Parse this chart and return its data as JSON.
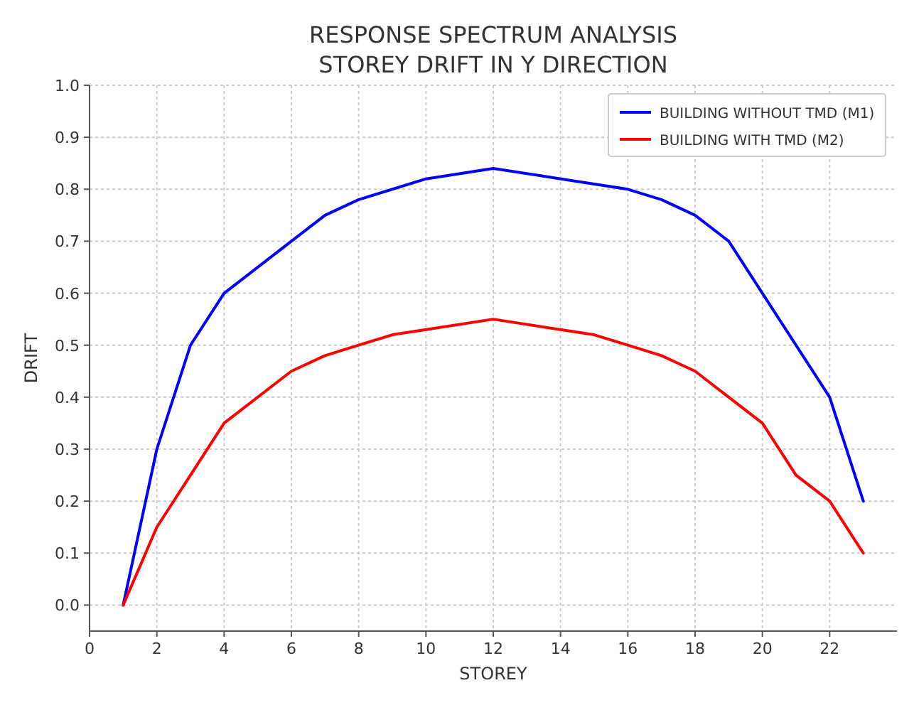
{
  "chart_data": {
    "type": "line",
    "title": "RESPONSE SPECTRUM ANALYSIS\nSTOREY DRIFT IN Y DIRECTION",
    "xlabel": "STOREY",
    "ylabel": "DRIFT",
    "xlim": [
      0,
      24
    ],
    "xticks": [
      0,
      2,
      4,
      6,
      8,
      10,
      12,
      14,
      16,
      18,
      20,
      22
    ],
    "ylim": [
      -0.05,
      1.0
    ],
    "yticks": [
      {
        "value": 0,
        "label": "0.0"
      },
      0.1,
      0.2,
      0.3,
      0.4,
      0.5,
      0.6,
      0.7,
      0.8,
      0.9,
      {
        "value": 1,
        "label": "1.0"
      }
    ],
    "grid": true,
    "legend": "top right",
    "line_style": "solid",
    "marker": "none",
    "series": [
      {
        "name": "BUILDING WITHOUT TMD (M1)",
        "color": "#0000ff",
        "x": [
          1,
          2,
          3,
          4,
          6,
          7,
          8,
          10,
          12,
          16,
          17,
          18,
          19,
          20,
          22,
          23
        ],
        "values": [
          0,
          0.3,
          0.5,
          0.6,
          0.7,
          0.75,
          0.78,
          0.82,
          0.84,
          0.8,
          0.78,
          0.75,
          0.7,
          0.6,
          0.4,
          0.2
        ]
      },
      {
        "name": "BUILDING WITH TMD (M2)",
        "color": "#ff0000",
        "x": [
          1,
          2,
          4,
          6,
          7,
          8,
          9,
          10,
          12,
          15,
          16,
          17,
          18,
          20,
          21,
          22,
          23
        ],
        "values": [
          0,
          0.15,
          0.35,
          0.45,
          0.48,
          0.5,
          0.52,
          0.53,
          0.55,
          0.52,
          0.5,
          0.48,
          0.45,
          0.35,
          0.25,
          0.2,
          0.1
        ]
      }
    ]
  }
}
